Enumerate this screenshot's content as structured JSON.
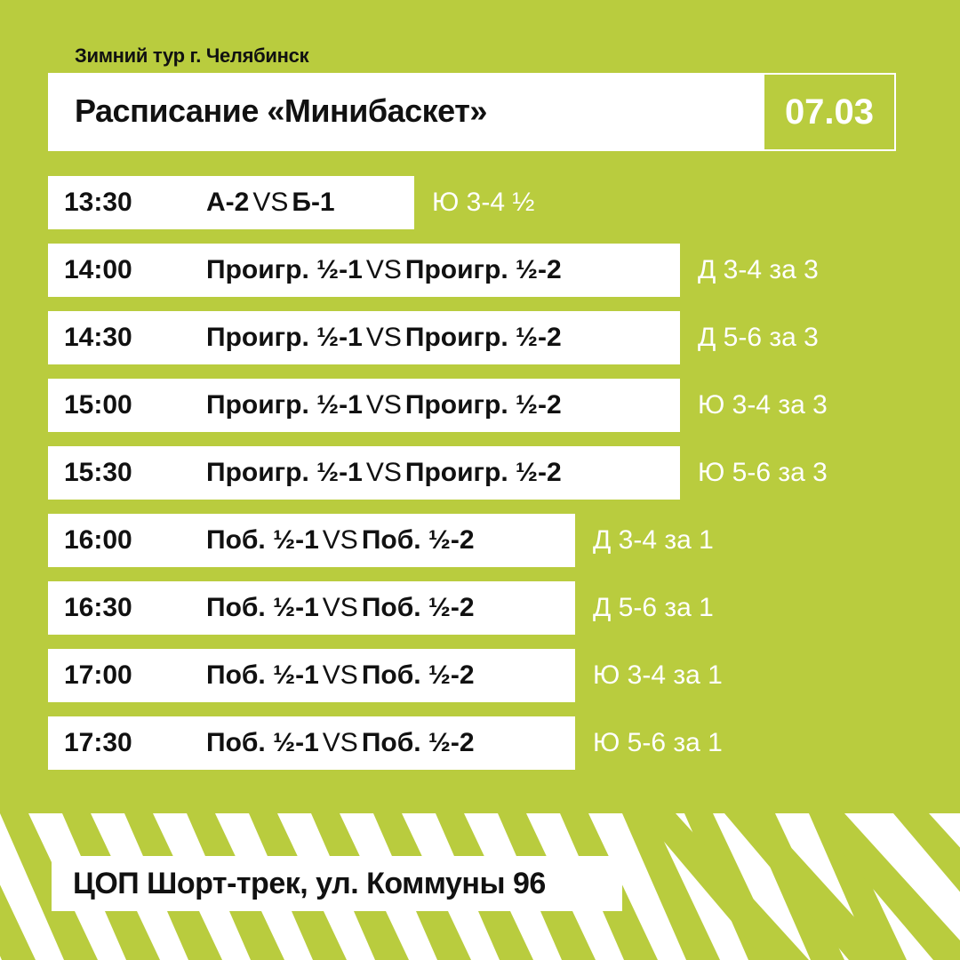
{
  "subtitle": "Зимний тур г. Челябинск",
  "title": "Расписание «Минибаскет»",
  "date": "07.03",
  "vs_label": "VS",
  "rows": [
    {
      "time": "13:30",
      "team1": "А-2",
      "team2": "Б-1",
      "note": "Ю 3-4 ½"
    },
    {
      "time": "14:00",
      "team1": "Проигр. ½-1",
      "team2": "Проигр. ½-2",
      "note": "Д 3-4 за 3"
    },
    {
      "time": "14:30",
      "team1": "Проигр. ½-1",
      "team2": "Проигр. ½-2",
      "note": "Д 5-6 за 3"
    },
    {
      "time": "15:00",
      "team1": "Проигр. ½-1",
      "team2": "Проигр. ½-2",
      "note": "Ю 3-4 за 3"
    },
    {
      "time": "15:30",
      "team1": "Проигр. ½-1",
      "team2": "Проигр. ½-2",
      "note": "Ю 5-6 за 3"
    },
    {
      "time": "16:00",
      "team1": "Поб. ½-1",
      "team2": "Поб. ½-2",
      "note": "Д 3-4 за 1"
    },
    {
      "time": "16:30",
      "team1": "Поб. ½-1",
      "team2": "Поб. ½-2",
      "note": "Д 5-6 за 1"
    },
    {
      "time": "17:00",
      "team1": "Поб. ½-1",
      "team2": "Поб. ½-2",
      "note": "Ю 3-4 за 1"
    },
    {
      "time": "17:30",
      "team1": "Поб. ½-1",
      "team2": "Поб. ½-2",
      "note": "Ю 5-6 за 1"
    }
  ],
  "venue": "ЦОП Шорт-трек, ул. Коммуны 96",
  "colors": {
    "background": "#b9cc3e",
    "box": "#ffffff",
    "text": "#111111"
  }
}
